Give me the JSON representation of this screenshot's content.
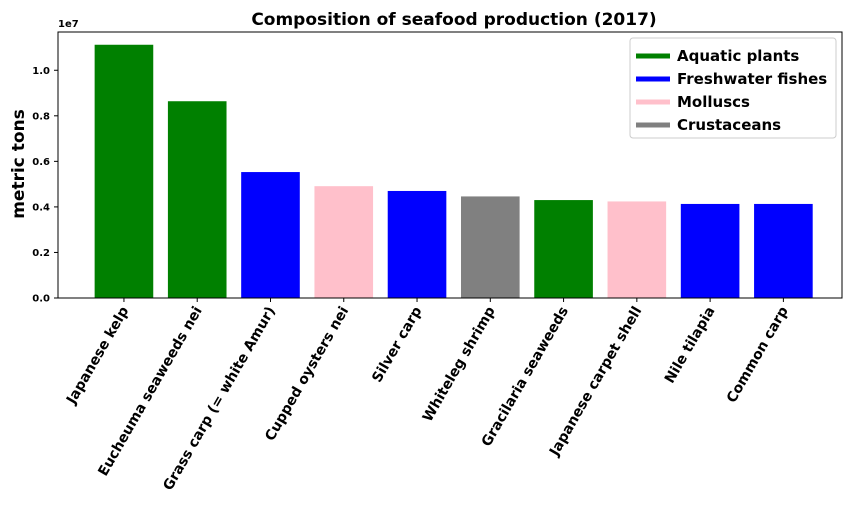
{
  "chart_data": {
    "type": "bar",
    "title": "Composition of seafood production (2017)",
    "xlabel": "",
    "ylabel": "metric tons",
    "offset_text": "1e7",
    "categories": [
      "Japanese kelp",
      "Eucheuma seaweeds nei",
      "Grass carp (= white Amur)",
      "Cupped oysters nei",
      "Silver carp",
      "Whiteleg shrimp",
      "Gracilaria seaweeds",
      "Japanese carpet shell",
      "Nile tilapia",
      "Common carp"
    ],
    "values": [
      11120000,
      8640000,
      5530000,
      4910000,
      4700000,
      4460000,
      4300000,
      4240000,
      4130000,
      4130000
    ],
    "groups": [
      "Aquatic plants",
      "Aquatic plants",
      "Freshwater fishes",
      "Molluscs",
      "Freshwater fishes",
      "Crustaceans",
      "Aquatic plants",
      "Molluscs",
      "Freshwater fishes",
      "Freshwater fishes"
    ],
    "legend": [
      {
        "label": "Aquatic plants",
        "color": "#008000"
      },
      {
        "label": "Freshwater fishes",
        "color": "#0000ff"
      },
      {
        "label": "Molluscs",
        "color": "#ffc0cb"
      },
      {
        "label": "Crustaceans",
        "color": "#808080"
      }
    ],
    "legend_position": "top-right",
    "yticks": [
      0,
      2000000,
      4000000,
      6000000,
      8000000,
      10000000
    ],
    "ytick_labels": [
      "0.0",
      "0.2",
      "0.4",
      "0.6",
      "0.8",
      "1.0"
    ],
    "ylim": [
      0,
      11680000
    ],
    "grid": false
  }
}
